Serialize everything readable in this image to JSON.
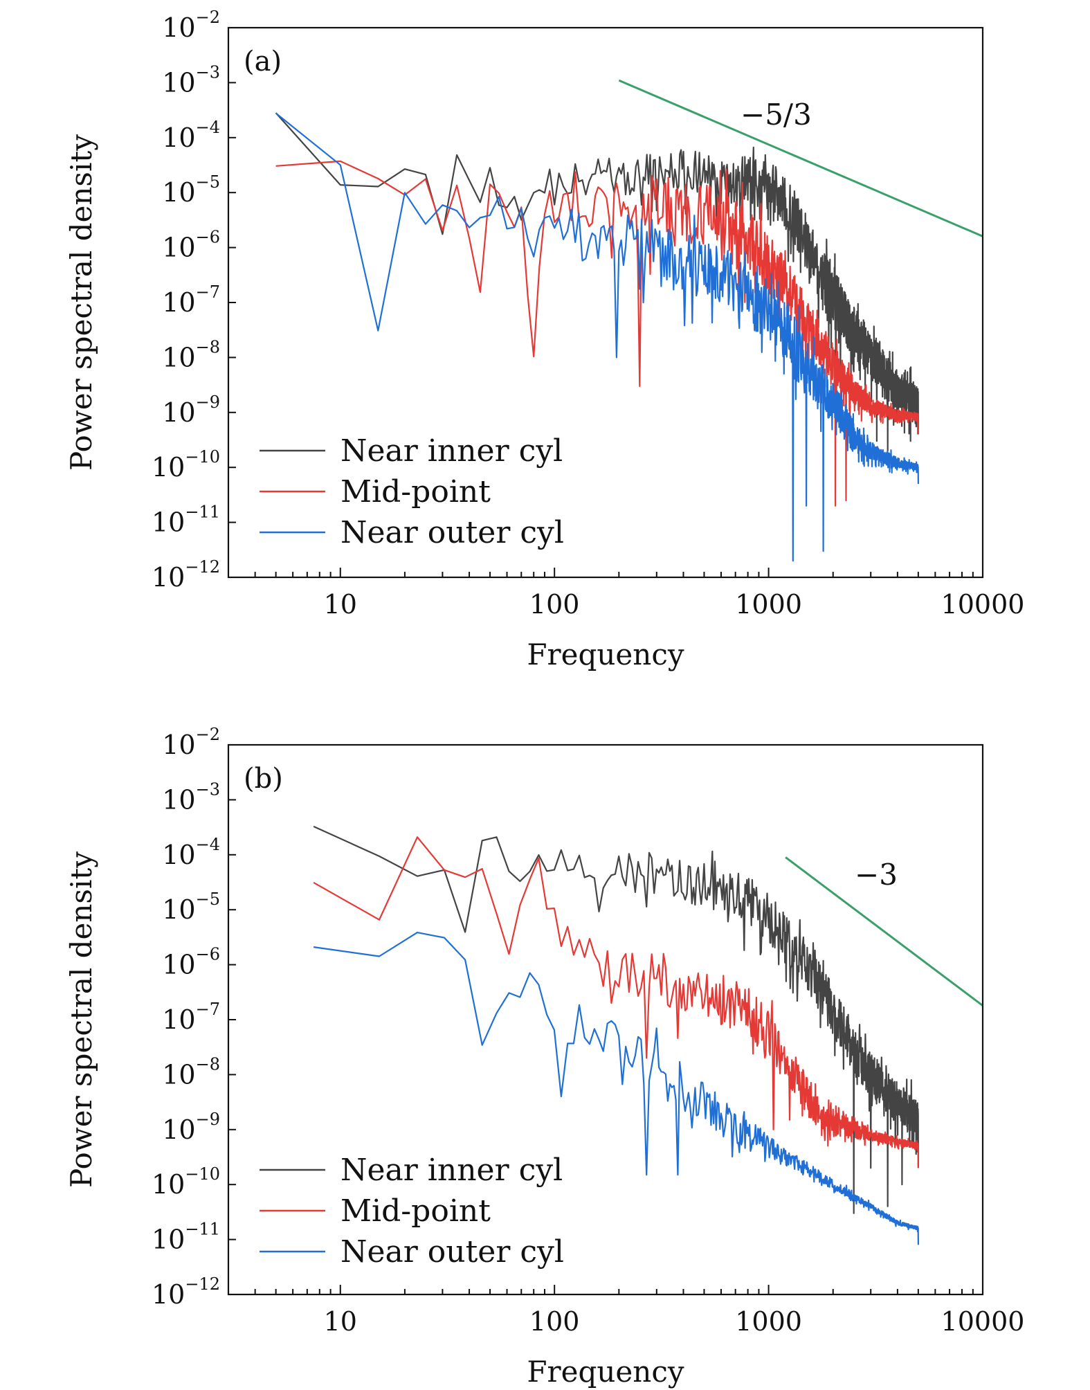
{
  "chart_data": [
    {
      "type": "line",
      "panel_label": "(a)",
      "xlabel": "Frequency",
      "ylabel": "Power spectral density",
      "xscale": "log",
      "yscale": "log",
      "xlim": [
        3,
        10000
      ],
      "ylim": [
        1e-12,
        0.01
      ],
      "x_ticks": [
        10,
        100,
        1000,
        10000
      ],
      "x_tick_labels": [
        "10",
        "100",
        "1000",
        "10000"
      ],
      "y_tick_exponents": [
        -12,
        -11,
        -10,
        -9,
        -8,
        -7,
        -6,
        -5,
        -4,
        -3,
        -2
      ],
      "y_tick_labels": [
        "10−12",
        "10−11",
        "10−10",
        "10−9",
        "10−8",
        "10−7",
        "10−6",
        "10−5",
        "10−4",
        "10−3",
        "10−2"
      ],
      "grid": false,
      "legend_position": "lower-left",
      "reference_line": {
        "label": "−5/3",
        "x": [
          200,
          10000
        ],
        "y": [
          0.0011,
          1.6e-06
        ],
        "color": "#3aa06a"
      },
      "series": [
        {
          "name": "Near inner cyl",
          "color": "#444444",
          "n_points": 1000,
          "seed": 11,
          "base": [
            [
              5,
              0.00028
            ],
            [
              10,
              1.3e-05
            ],
            [
              15,
              1.8e-05
            ],
            [
              20,
              2.8e-05
            ],
            [
              25,
              2.3e-05
            ],
            [
              30,
              3e-06
            ],
            [
              35,
              5.5e-05
            ],
            [
              40,
              1.5e-05
            ],
            [
              45,
              4.5e-06
            ],
            [
              50,
              3.5e-05
            ],
            [
              55,
              1e-05
            ],
            [
              60,
              1.3e-05
            ],
            [
              70,
              5e-06
            ],
            [
              80,
              1e-05
            ],
            [
              100,
              1.5e-05
            ],
            [
              150,
              2e-05
            ],
            [
              200,
              2e-05
            ],
            [
              400,
              2.5e-05
            ],
            [
              700,
              2e-05
            ],
            [
              1000,
              1.5e-05
            ],
            [
              1300,
              4e-06
            ],
            [
              1600,
              7e-07
            ],
            [
              2000,
              1.2e-07
            ],
            [
              2500,
              3e-08
            ],
            [
              3000,
              1.1e-08
            ],
            [
              3500,
              5e-09
            ],
            [
              4000,
              2.5e-09
            ],
            [
              5000,
              1.5e-09
            ]
          ],
          "noise": [
            [
              5,
              0.1
            ],
            [
              100,
              0.3
            ],
            [
              1000,
              0.45
            ],
            [
              2000,
              0.55
            ],
            [
              5000,
              0.3
            ]
          ],
          "tail": 5e-10,
          "dips": [
            [
              3200,
              3e-10
            ],
            [
              3600,
              2e-10
            ],
            [
              4000,
              1e-09
            ],
            [
              4600,
              3e-10
            ]
          ]
        },
        {
          "name": "Mid-point",
          "color": "#e53935",
          "n_points": 1000,
          "seed": 23,
          "base": [
            [
              5,
              4.5e-05
            ],
            [
              10,
              4.2e-05
            ],
            [
              15,
              9e-06
            ],
            [
              20,
              7.5e-06
            ],
            [
              25,
              1.1e-05
            ],
            [
              30,
              2.2e-06
            ],
            [
              35,
              8e-06
            ],
            [
              40,
              2e-06
            ],
            [
              45,
              2.3e-07
            ],
            [
              50,
              1.4e-05
            ],
            [
              55,
              6e-06
            ],
            [
              60,
              3e-06
            ],
            [
              70,
              3e-06
            ],
            [
              80,
              1.2e-08
            ],
            [
              90,
              8e-06
            ],
            [
              100,
              7e-06
            ],
            [
              150,
              6e-06
            ],
            [
              200,
              7e-06
            ],
            [
              400,
              5e-06
            ],
            [
              600,
              3e-06
            ],
            [
              800,
              1.5e-06
            ],
            [
              1000,
              5e-07
            ],
            [
              1300,
              1.3e-07
            ],
            [
              1600,
              3e-08
            ],
            [
              2000,
              8e-09
            ],
            [
              2500,
              2.5e-09
            ],
            [
              3000,
              1.3e-09
            ],
            [
              4000,
              9e-10
            ],
            [
              5000,
              8.5e-10
            ]
          ],
          "noise": [
            [
              5,
              0.1
            ],
            [
              90,
              0.3
            ],
            [
              300,
              0.6
            ],
            [
              1000,
              0.55
            ],
            [
              2000,
              0.35
            ],
            [
              3000,
              0.15
            ],
            [
              5000,
              0.05
            ]
          ],
          "tail": 4e-10,
          "dips": [
            [
              250,
              3e-09
            ],
            [
              2050,
              2e-11
            ],
            [
              2300,
              2.5e-11
            ]
          ]
        },
        {
          "name": "Near outer cyl",
          "color": "#1f6fd6",
          "n_points": 1000,
          "seed": 37,
          "base": [
            [
              5,
              0.00023
            ],
            [
              10,
              2.7e-05
            ],
            [
              15,
              4e-08
            ],
            [
              20,
              1e-05
            ],
            [
              25,
              3.5e-06
            ],
            [
              30,
              4e-06
            ],
            [
              35,
              4.2e-06
            ],
            [
              40,
              4e-06
            ],
            [
              45,
              2.6e-06
            ],
            [
              50,
              4e-06
            ],
            [
              55,
              1e-05
            ],
            [
              60,
              3.5e-06
            ],
            [
              70,
              4e-06
            ],
            [
              80,
              1.3e-06
            ],
            [
              100,
              3e-06
            ],
            [
              200,
              1.5e-06
            ],
            [
              300,
              1e-06
            ],
            [
              500,
              4e-07
            ],
            [
              700,
              2e-07
            ],
            [
              1000,
              7e-08
            ],
            [
              1300,
              2e-08
            ],
            [
              1600,
              5e-09
            ],
            [
              2000,
              1.5e-09
            ],
            [
              2500,
              4e-10
            ],
            [
              3000,
              2e-10
            ],
            [
              4000,
              1.2e-10
            ],
            [
              5000,
              1e-10
            ]
          ],
          "noise": [
            [
              5,
              0.1
            ],
            [
              90,
              0.3
            ],
            [
              300,
              0.55
            ],
            [
              1000,
              0.55
            ],
            [
              2000,
              0.4
            ],
            [
              3000,
              0.15
            ],
            [
              5000,
              0.05
            ]
          ],
          "tail": 5e-11,
          "dips": [
            [
              195,
              1e-08
            ],
            [
              1300,
              2e-12
            ],
            [
              1800,
              3e-12
            ],
            [
              1500,
              2e-11
            ]
          ]
        }
      ]
    },
    {
      "type": "line",
      "panel_label": "(b)",
      "xlabel": "Frequency",
      "ylabel": "Power spectral density",
      "xscale": "log",
      "yscale": "log",
      "xlim": [
        3,
        10000
      ],
      "ylim": [
        1e-12,
        0.01
      ],
      "x_ticks": [
        10,
        100,
        1000,
        10000
      ],
      "x_tick_labels": [
        "10",
        "100",
        "1000",
        "10000"
      ],
      "y_tick_exponents": [
        -12,
        -11,
        -10,
        -9,
        -8,
        -7,
        -6,
        -5,
        -4,
        -3,
        -2
      ],
      "y_tick_labels": [
        "10−12",
        "10−11",
        "10−10",
        "10−9",
        "10−8",
        "10−7",
        "10−6",
        "10−5",
        "10−4",
        "10−3",
        "10−2"
      ],
      "grid": false,
      "legend_position": "lower-left",
      "reference_line": {
        "label": "−3",
        "x": [
          1200,
          10000
        ],
        "y": [
          9e-05,
          1.8e-07
        ],
        "color": "#3aa06a"
      },
      "series": [
        {
          "name": "Near inner cyl",
          "color": "#444444",
          "n_points": 650,
          "seed": 51,
          "base": [
            [
              7.5,
              0.00038
            ],
            [
              15,
              0.00011
            ],
            [
              22.5,
              4.5e-05
            ],
            [
              30,
              8e-05
            ],
            [
              37.5,
              4e-06
            ],
            [
              45,
              0.0004
            ],
            [
              52.5,
              0.00016
            ],
            [
              60,
              5e-05
            ],
            [
              67.5,
              2.5e-05
            ],
            [
              75,
              5e-05
            ],
            [
              82.5,
              0.00015
            ],
            [
              90,
              4e-05
            ],
            [
              100,
              8e-05
            ],
            [
              150,
              4e-05
            ],
            [
              200,
              5e-05
            ],
            [
              300,
              5e-05
            ],
            [
              500,
              3e-05
            ],
            [
              800,
              1.5e-05
            ],
            [
              1000,
              7e-06
            ],
            [
              1500,
              1e-06
            ],
            [
              2000,
              1.5e-07
            ],
            [
              2500,
              3e-08
            ],
            [
              3000,
              1e-08
            ],
            [
              4000,
              3e-09
            ],
            [
              5000,
              1.5e-09
            ]
          ],
          "noise": [
            [
              7.5,
              0.05
            ],
            [
              100,
              0.3
            ],
            [
              500,
              0.45
            ],
            [
              1000,
              0.45
            ],
            [
              2000,
              0.45
            ],
            [
              5000,
              0.35
            ]
          ],
          "tail": 2e-10,
          "dips": [
            [
              2500,
              3e-11
            ],
            [
              3600,
              4e-11
            ],
            [
              4200,
              1e-10
            ],
            [
              3000,
              2e-10
            ]
          ]
        },
        {
          "name": "Mid-point",
          "color": "#e53935",
          "n_points": 650,
          "seed": 67,
          "base": [
            [
              7.5,
              2.8e-05
            ],
            [
              15,
              6e-06
            ],
            [
              22.5,
              0.00022
            ],
            [
              30,
              8e-05
            ],
            [
              37.5,
              2.5e-05
            ],
            [
              45,
              8e-05
            ],
            [
              52.5,
              1.5e-05
            ],
            [
              60,
              1.8e-06
            ],
            [
              67.5,
              2e-05
            ],
            [
              75,
              2.2e-05
            ],
            [
              82.5,
              9e-05
            ],
            [
              90,
              2e-05
            ],
            [
              100,
              5e-06
            ],
            [
              150,
              2e-06
            ],
            [
              200,
              1e-06
            ],
            [
              300,
              6e-07
            ],
            [
              500,
              3e-07
            ],
            [
              800,
              1.5e-07
            ],
            [
              1000,
              5e-08
            ],
            [
              1300,
              1.2e-08
            ],
            [
              1600,
              3e-09
            ],
            [
              2000,
              1.5e-09
            ],
            [
              3000,
              8e-10
            ],
            [
              4000,
              6e-10
            ],
            [
              5000,
              5e-10
            ]
          ],
          "noise": [
            [
              7.5,
              0.05
            ],
            [
              90,
              0.3
            ],
            [
              300,
              0.5
            ],
            [
              1000,
              0.45
            ],
            [
              2000,
              0.3
            ],
            [
              3000,
              0.1
            ],
            [
              5000,
              0.05
            ]
          ],
          "tail": 2e-10,
          "dips": [
            [
              185,
              2e-07
            ],
            [
              270,
              2e-08
            ],
            [
              1050,
              1e-09
            ],
            [
              1250,
              1.5e-09
            ]
          ]
        },
        {
          "name": "Near outer cyl",
          "color": "#1f6fd6",
          "n_points": 650,
          "seed": 83,
          "base": [
            [
              7.5,
              2e-06
            ],
            [
              15,
              1.3e-06
            ],
            [
              22.5,
              5e-06
            ],
            [
              30,
              2.2e-06
            ],
            [
              37.5,
              2e-06
            ],
            [
              45,
              2e-08
            ],
            [
              52.5,
              1.2e-07
            ],
            [
              60,
              3e-07
            ],
            [
              67.5,
              3.5e-07
            ],
            [
              75,
              4.5e-07
            ],
            [
              82.5,
              7.5e-07
            ],
            [
              90,
              3e-07
            ],
            [
              100,
              7e-08
            ],
            [
              150,
              5e-08
            ],
            [
              200,
              4e-08
            ],
            [
              300,
              1.2e-08
            ],
            [
              500,
              3e-09
            ],
            [
              800,
              8e-10
            ],
            [
              1000,
              5e-10
            ],
            [
              1500,
              2e-10
            ],
            [
              2000,
              1e-10
            ],
            [
              3000,
              4e-11
            ],
            [
              4000,
              2e-11
            ],
            [
              5000,
              1.6e-11
            ]
          ],
          "noise": [
            [
              7.5,
              0.05
            ],
            [
              100,
              0.3
            ],
            [
              300,
              0.45
            ],
            [
              800,
              0.3
            ],
            [
              1500,
              0.12
            ],
            [
              3000,
              0.05
            ],
            [
              5000,
              0.03
            ]
          ],
          "tail": 8e-12,
          "dips": [
            [
              105,
              4e-09
            ],
            [
              270,
              1.5e-10
            ],
            [
              380,
              1.5e-10
            ],
            [
              300,
              7e-08
            ]
          ]
        }
      ]
    }
  ]
}
